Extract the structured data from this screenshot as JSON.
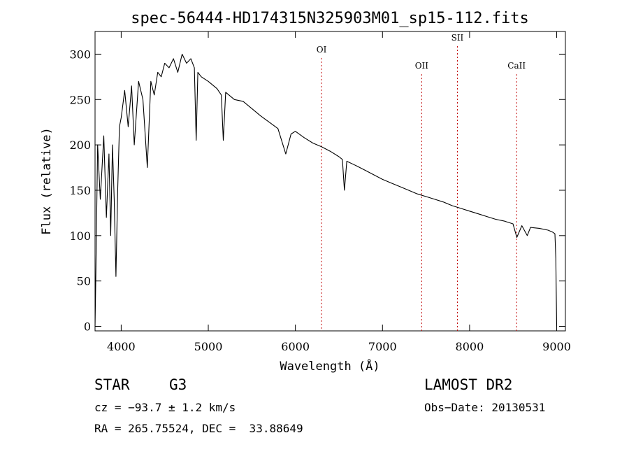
{
  "chart_data": {
    "type": "line",
    "title": "spec-56444-HD174315N325903M01_sp15-112.fits",
    "xlabel": "Wavelength (Å)",
    "ylabel": "Flux (relative)",
    "xlim": [
      3700,
      9100
    ],
    "ylim": [
      -5,
      325
    ],
    "xticks": [
      4000,
      5000,
      6000,
      7000,
      8000,
      9000
    ],
    "yticks": [
      0,
      50,
      100,
      150,
      200,
      250,
      300
    ],
    "grid": false,
    "series": [
      {
        "name": "flux",
        "x": [
          3700,
          3710,
          3730,
          3760,
          3800,
          3830,
          3860,
          3880,
          3900,
          3920,
          3940,
          3960,
          3980,
          4000,
          4040,
          4080,
          4120,
          4150,
          4200,
          4250,
          4300,
          4340,
          4380,
          4420,
          4460,
          4500,
          4550,
          4600,
          4650,
          4700,
          4750,
          4800,
          4840,
          4861,
          4880,
          4920,
          5000,
          5100,
          5150,
          5172,
          5200,
          5300,
          5400,
          5500,
          5600,
          5700,
          5800,
          5890,
          5950,
          6000,
          6100,
          6200,
          6300,
          6400,
          6500,
          6540,
          6563,
          6590,
          6700,
          6800,
          6900,
          7000,
          7100,
          7200,
          7300,
          7400,
          7500,
          7600,
          7700,
          7800,
          7900,
          8000,
          8100,
          8200,
          8300,
          8400,
          8498,
          8542,
          8600,
          8662,
          8700,
          8800,
          8900,
          8950,
          8980,
          8990,
          9000
        ],
        "y": [
          0,
          60,
          200,
          140,
          210,
          120,
          190,
          100,
          200,
          140,
          55,
          150,
          220,
          230,
          260,
          220,
          265,
          200,
          270,
          250,
          175,
          270,
          255,
          280,
          275,
          290,
          285,
          295,
          280,
          300,
          290,
          295,
          285,
          205,
          280,
          275,
          270,
          262,
          255,
          205,
          258,
          250,
          248,
          240,
          232,
          225,
          218,
          190,
          212,
          215,
          208,
          202,
          198,
          193,
          187,
          184,
          150,
          182,
          177,
          172,
          167,
          162,
          158,
          154,
          150,
          146,
          143,
          140,
          137,
          133,
          130,
          127,
          124,
          121,
          118,
          116,
          113,
          98,
          111,
          100,
          109,
          108,
          106,
          104,
          102,
          75,
          0
        ]
      }
    ],
    "annotations": [
      {
        "label": "OI",
        "x": 6300,
        "y": 302
      },
      {
        "label": "OII",
        "x": 7450,
        "y": 284
      },
      {
        "label": "SII",
        "x": 7860,
        "y": 315
      },
      {
        "label": "CaII",
        "x": 8540,
        "y": 284
      }
    ]
  },
  "info": {
    "object_class": "STAR",
    "subclass": "G3",
    "survey": "LAMOST DR2",
    "cz": "cz = −93.7 ± 1.2 km/s",
    "obs_date": "Obs−Date: 20130531",
    "coords": "RA = 265.75524, DEC =  33.88649"
  }
}
